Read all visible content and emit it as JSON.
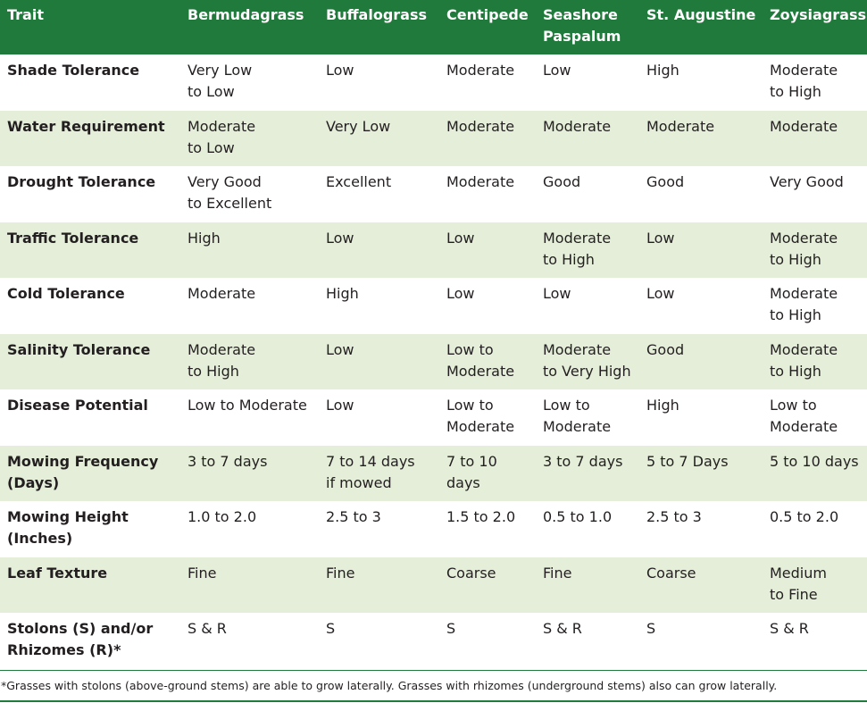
{
  "table": {
    "headers": [
      "Trait",
      "Bermudagrass",
      "Buffalograss",
      "Centipede",
      "Seashore\nPaspalum",
      "St. Augustine",
      "Zoysiagrass"
    ],
    "rows": [
      [
        "Shade Tolerance",
        "Very Low\nto Low",
        "Low",
        "Moderate",
        "Low",
        "High",
        "Moderate\nto High"
      ],
      [
        "Water Requirement",
        "Moderate\nto Low",
        "Very Low",
        "Moderate",
        "Moderate",
        "Moderate",
        "Moderate"
      ],
      [
        "Drought Tolerance",
        "Very Good\nto Excellent",
        "Excellent",
        "Moderate",
        "Good",
        "Good",
        "Very Good"
      ],
      [
        "Traffic Tolerance",
        "High",
        "Low",
        "Low",
        "Moderate\nto High",
        "Low",
        "Moderate\nto High"
      ],
      [
        "Cold Tolerance",
        "Moderate",
        "High",
        "Low",
        "Low",
        "Low",
        "Moderate\nto High"
      ],
      [
        "Salinity Tolerance",
        "Moderate\nto High",
        "Low",
        "Low to\nModerate",
        "Moderate\nto Very High",
        "Good",
        "Moderate\nto High"
      ],
      [
        "Disease Potential",
        "Low to Moderate",
        "Low",
        "Low to\nModerate",
        "Low to\nModerate",
        "High",
        "Low to\nModerate"
      ],
      [
        "Mowing Frequency\n(Days)",
        "3 to 7 days",
        "7 to 14 days\nif mowed",
        "7 to 10 days",
        "3 to 7 days",
        "5 to 7 Days",
        "5 to 10 days"
      ],
      [
        "Mowing Height\n(Inches)",
        "1.0 to 2.0",
        "2.5 to 3",
        "1.5 to 2.0",
        "0.5 to 1.0",
        "2.5 to 3",
        "0.5 to 2.0"
      ],
      [
        "Leaf Texture",
        "Fine",
        "Fine",
        "Coarse",
        "Fine",
        "Coarse",
        "Medium\nto Fine"
      ],
      [
        "Stolons (S) and/or\nRhizomes (R)*",
        "S & R",
        "S",
        "S",
        "S & R",
        "S",
        "S & R"
      ]
    ]
  },
  "footnote": "*Grasses with stolons (above-ground stems) are able to grow laterally. Grasses with rhizomes (underground stems) also can grow laterally.",
  "colors": {
    "header_bg": "#1f7a3b",
    "stripe_bg": "#e4eed9"
  }
}
